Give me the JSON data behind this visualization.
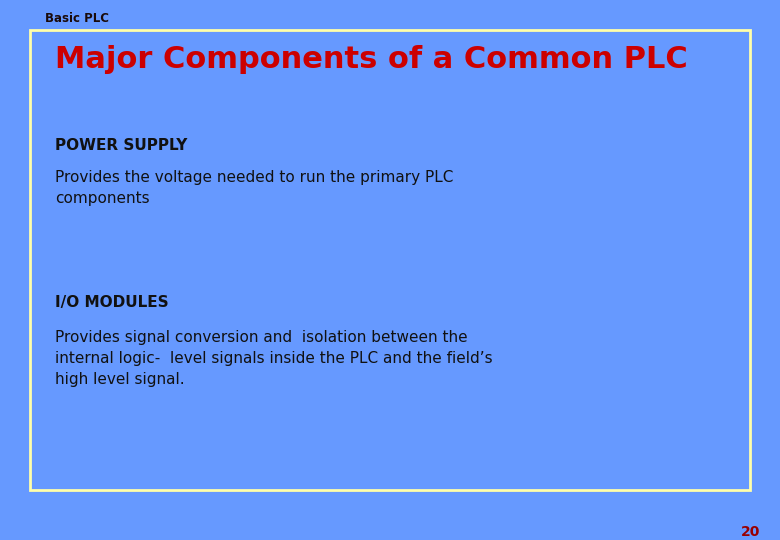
{
  "bg_color": "#6699ff",
  "box_bg_color": "#6699ff",
  "box_border_color": "#ffffaa",
  "header_label": "Basic PLC",
  "header_color": "#1a0a0a",
  "header_fontsize": 8.5,
  "title": "Major Components of a Common PLC",
  "title_color": "#cc0000",
  "title_fontsize": 22,
  "section1_heading": "POWER SUPPLY",
  "section1_heading_color": "#111111",
  "section1_heading_fontsize": 11,
  "section1_body": "Provides the voltage needed to run the primary PLC\ncomponents",
  "section1_body_color": "#111111",
  "section1_body_fontsize": 11,
  "section2_heading": "I/O MODULES",
  "section2_heading_color": "#111111",
  "section2_heading_fontsize": 11,
  "section2_body": "Provides signal conversion and  isolation between the\ninternal logic-  level signals inside the PLC and the field’s\nhigh level signal.",
  "section2_body_color": "#111111",
  "section2_body_fontsize": 11,
  "page_number": "20",
  "page_number_color": "#990000",
  "page_number_fontsize": 10
}
